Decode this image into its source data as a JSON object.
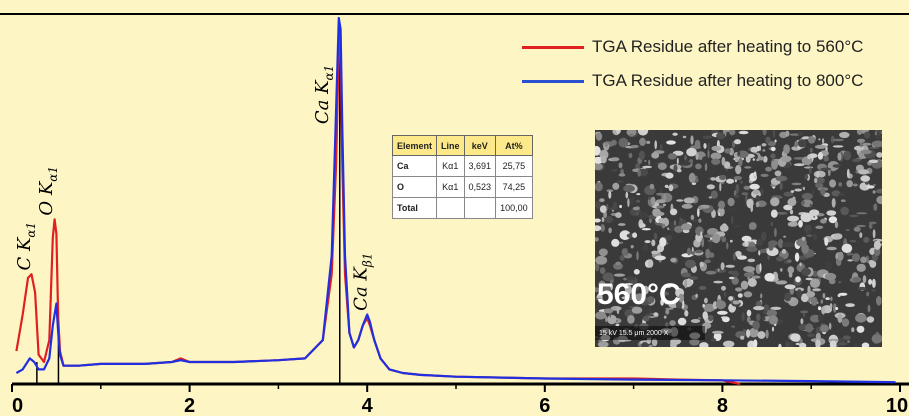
{
  "chart_data": {
    "type": "line",
    "xlim": [
      0,
      10
    ],
    "ylim": [
      0,
      1
    ],
    "x_ticks": [
      "0",
      "2",
      "4",
      "6",
      "8",
      "10"
    ],
    "title": "",
    "xlabel": "",
    "ylabel": "",
    "series": [
      {
        "name": "TGA Residue after heating to 560°C",
        "color": "#e02020",
        "x": [
          0.05,
          0.12,
          0.18,
          0.22,
          0.26,
          0.3,
          0.36,
          0.42,
          0.46,
          0.48,
          0.5,
          0.52,
          0.54,
          0.58,
          0.65,
          0.75,
          1.0,
          1.5,
          1.8,
          1.9,
          2.0,
          2.5,
          3.0,
          3.3,
          3.5,
          3.6,
          3.65,
          3.68,
          3.69,
          3.7,
          3.72,
          3.75,
          3.8,
          3.85,
          3.9,
          3.95,
          4.0,
          4.03,
          4.08,
          4.15,
          4.25,
          4.4,
          4.6,
          5.0,
          6.0,
          7.0,
          7.5,
          8.0,
          8.2
        ],
        "y": [
          0.09,
          0.19,
          0.29,
          0.3,
          0.25,
          0.08,
          0.06,
          0.12,
          0.4,
          0.45,
          0.41,
          0.18,
          0.09,
          0.05,
          0.05,
          0.05,
          0.055,
          0.055,
          0.06,
          0.07,
          0.06,
          0.06,
          0.065,
          0.07,
          0.12,
          0.3,
          0.6,
          0.92,
          0.98,
          0.92,
          0.6,
          0.3,
          0.14,
          0.1,
          0.12,
          0.16,
          0.18,
          0.16,
          0.12,
          0.07,
          0.04,
          0.03,
          0.025,
          0.02,
          0.015,
          0.015,
          0.012,
          0.01,
          0.0
        ]
      },
      {
        "name": "TGA Residue after heating to 800°C",
        "color": "#2030e0",
        "x": [
          0.05,
          0.12,
          0.2,
          0.25,
          0.3,
          0.36,
          0.42,
          0.46,
          0.5,
          0.52,
          0.54,
          0.58,
          0.65,
          0.75,
          1.0,
          1.5,
          1.8,
          1.9,
          2.0,
          2.5,
          3.0,
          3.3,
          3.5,
          3.6,
          3.65,
          3.68,
          3.7,
          3.72,
          3.75,
          3.8,
          3.85,
          3.9,
          3.95,
          4.0,
          4.03,
          4.08,
          4.15,
          4.25,
          4.4,
          4.6,
          5.0,
          6.0,
          7.0,
          8.0,
          9.0,
          9.95
        ],
        "y": [
          0.03,
          0.04,
          0.07,
          0.06,
          0.04,
          0.04,
          0.07,
          0.16,
          0.22,
          0.14,
          0.08,
          0.05,
          0.05,
          0.05,
          0.055,
          0.055,
          0.06,
          0.065,
          0.06,
          0.06,
          0.065,
          0.07,
          0.12,
          0.35,
          0.75,
          1.0,
          0.97,
          0.7,
          0.35,
          0.14,
          0.1,
          0.12,
          0.16,
          0.19,
          0.17,
          0.12,
          0.07,
          0.04,
          0.03,
          0.025,
          0.02,
          0.015,
          0.012,
          0.01,
          0.008,
          0.005
        ]
      }
    ],
    "markers": [
      {
        "x": 0.28,
        "y": 0.06
      },
      {
        "x": 0.523,
        "y": 0.13
      },
      {
        "x": 3.691,
        "y": 0.96
      }
    ],
    "annotations": [
      {
        "label": "C K",
        "sub": "α1",
        "x": 0.2,
        "y": 0.31
      },
      {
        "label": "O K",
        "sub": "α1",
        "x": 0.45,
        "y": 0.46
      },
      {
        "label": "Ca K",
        "sub": "α1",
        "x": 3.56,
        "y": 0.71
      },
      {
        "label": "Ca K",
        "sub": "β1",
        "x": 3.99,
        "y": 0.2
      }
    ]
  },
  "legend": {
    "entries": [
      {
        "label": "TGA Residue after heating to 560°C",
        "color": "#e02020"
      },
      {
        "label": "TGA Residue after heating to 800°C",
        "color": "#2030e0"
      }
    ]
  },
  "eds_table": {
    "headers": [
      "Element",
      "Line",
      "keV",
      "At%"
    ],
    "rows": [
      [
        "Ca",
        "Kα1",
        "3,691",
        "25,75"
      ],
      [
        "O",
        "Kα1",
        "0,523",
        "74,25"
      ],
      [
        "Total",
        "",
        "",
        "100,00"
      ]
    ]
  },
  "sem_image": {
    "label": "560°C",
    "scale_bar": "15 kV   15.5 μm   2000 X"
  }
}
